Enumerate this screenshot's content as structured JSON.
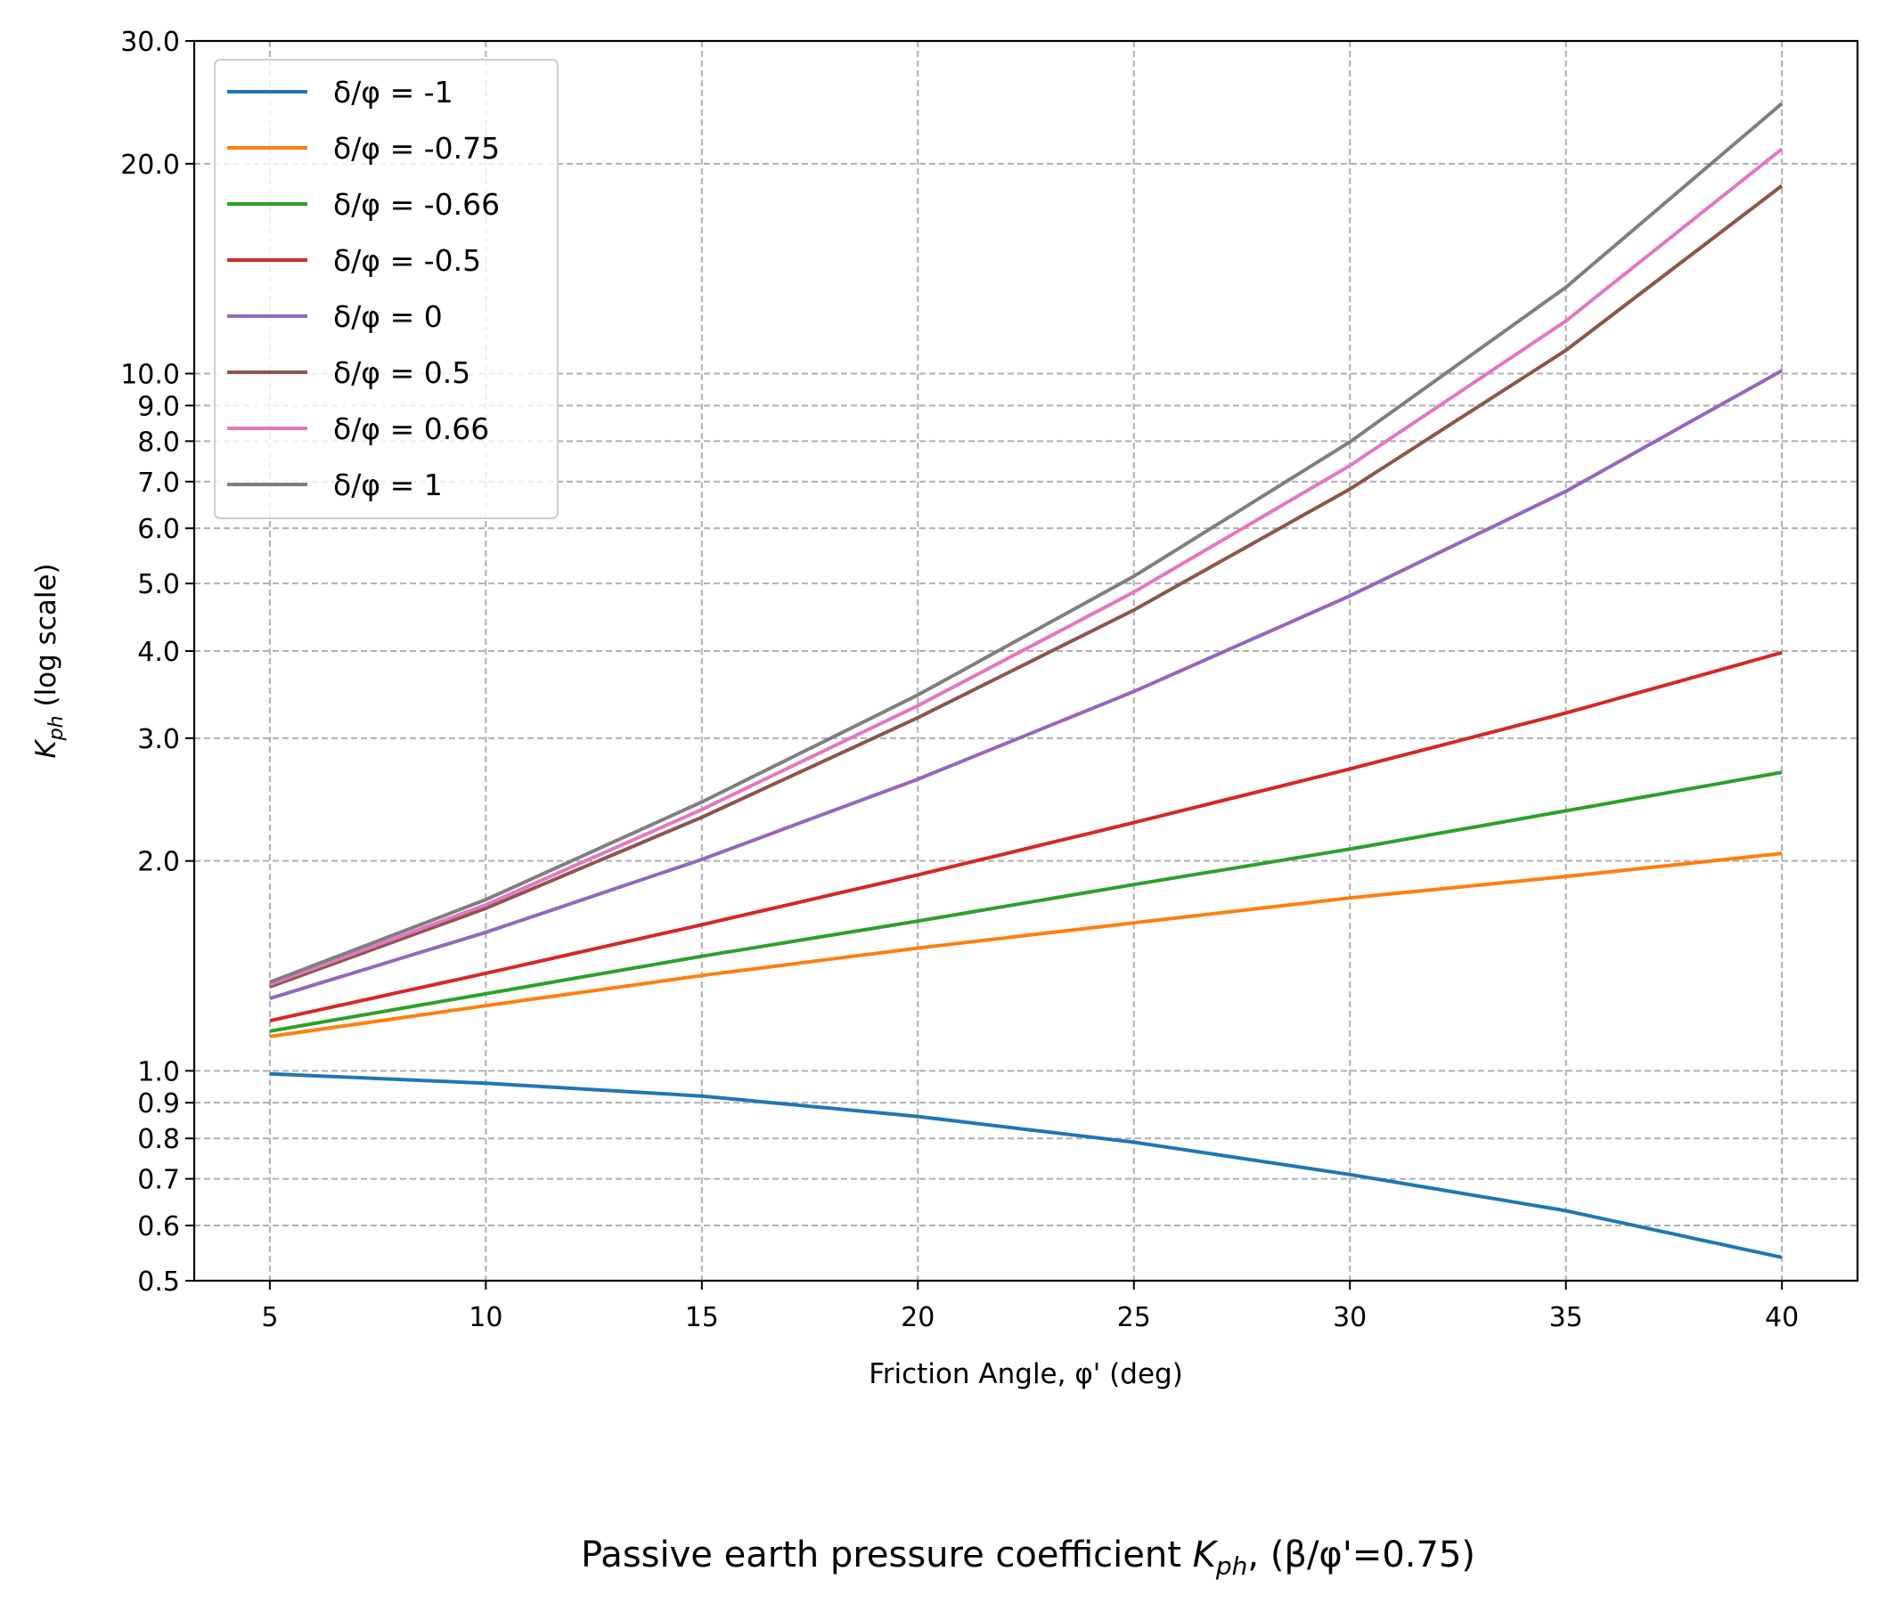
{
  "chart_data": {
    "type": "line",
    "xlabel": "Friction Angle, φ' (deg)",
    "ylabel_main": "K",
    "ylabel_sub": "ph",
    "ylabel_suffix": " (log scale)",
    "yscale": "log",
    "xlim": [
      3.25,
      41.75
    ],
    "ylim": [
      0.5,
      30.0
    ],
    "grid": true,
    "legend_position": "top-left",
    "x_ticks": [
      5,
      10,
      15,
      20,
      25,
      30,
      35,
      40
    ],
    "y_ticks": [
      0.5,
      0.6,
      0.7,
      0.8,
      0.9,
      1.0,
      2.0,
      3.0,
      4.0,
      5.0,
      6.0,
      7.0,
      8.0,
      9.0,
      10.0,
      20.0,
      30.0
    ],
    "y_tick_labels": [
      "0.5",
      "0.6",
      "0.7",
      "0.8",
      "0.9",
      "1.0",
      "2.0",
      "3.0",
      "4.0",
      "5.0",
      "6.0",
      "7.0",
      "8.0",
      "9.0",
      "10.0",
      "20.0",
      "30.0"
    ],
    "x": [
      5,
      10,
      15,
      20,
      25,
      30,
      35,
      40
    ],
    "series": [
      {
        "name": "δ/φ = -1",
        "color": "#1f77b4",
        "values": [
          0.99,
          0.96,
          0.92,
          0.86,
          0.79,
          0.71,
          0.63,
          0.54
        ]
      },
      {
        "name": "δ/φ = -0.75",
        "color": "#ff7f0e",
        "values": [
          1.12,
          1.24,
          1.37,
          1.5,
          1.63,
          1.77,
          1.9,
          2.05
        ]
      },
      {
        "name": "δ/φ = -0.66",
        "color": "#2ca02c",
        "values": [
          1.14,
          1.29,
          1.46,
          1.64,
          1.85,
          2.08,
          2.36,
          2.68
        ]
      },
      {
        "name": "δ/φ = -0.5",
        "color": "#d62728",
        "values": [
          1.18,
          1.38,
          1.62,
          1.91,
          2.27,
          2.71,
          3.26,
          3.98
        ]
      },
      {
        "name": "δ/φ = 0",
        "color": "#9467bd",
        "values": [
          1.27,
          1.58,
          2.01,
          2.62,
          3.5,
          4.8,
          6.78,
          10.1
        ]
      },
      {
        "name": "δ/φ = 0.5",
        "color": "#8c564b",
        "values": [
          1.32,
          1.71,
          2.31,
          3.21,
          4.58,
          6.83,
          10.8,
          18.6
        ]
      },
      {
        "name": "δ/φ = 0.66",
        "color": "#e377c2",
        "values": [
          1.33,
          1.73,
          2.37,
          3.34,
          4.86,
          7.38,
          11.9,
          21.0
        ]
      },
      {
        "name": "δ/φ = 1",
        "color": "#7f7f7f",
        "values": [
          1.34,
          1.76,
          2.43,
          3.46,
          5.12,
          7.98,
          13.3,
          24.4
        ]
      }
    ]
  },
  "caption": {
    "prefix": "Passive earth pressure coefficient ",
    "symbol_main": "K",
    "symbol_sub": "ph",
    "suffix": ", (β/φ'=0.75)"
  }
}
